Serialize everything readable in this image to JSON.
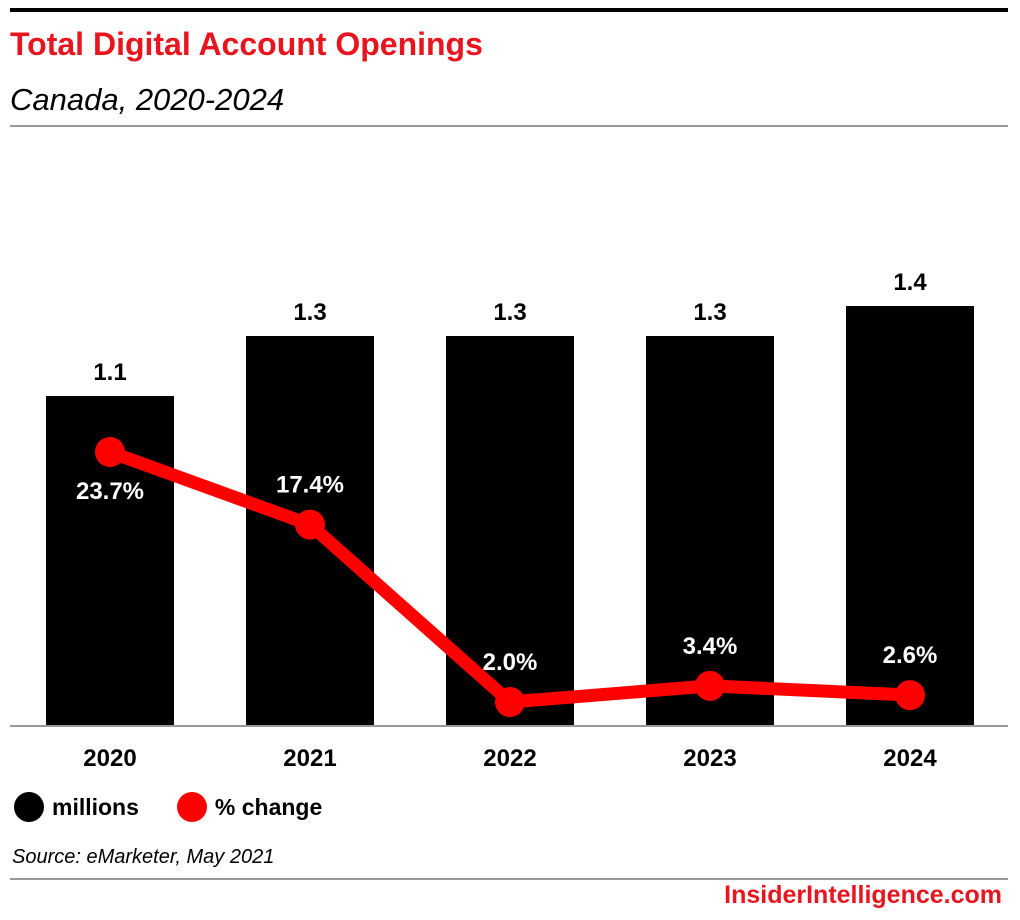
{
  "header": {
    "title": "Total Digital Account Openings",
    "subtitle": "Canada, 2020-2024"
  },
  "chart_data": {
    "type": "bar",
    "categories": [
      "2020",
      "2021",
      "2022",
      "2023",
      "2024"
    ],
    "series": [
      {
        "name": "millions",
        "type": "bar",
        "values": [
          1.1,
          1.3,
          1.3,
          1.3,
          1.4
        ],
        "labels": [
          "1.1",
          "1.3",
          "1.3",
          "1.3",
          "1.4"
        ],
        "color": "#000000"
      },
      {
        "name": "% change",
        "type": "line",
        "values": [
          23.7,
          17.4,
          2.0,
          3.4,
          2.6
        ],
        "labels": [
          "23.7%",
          "17.4%",
          "2.0%",
          "3.4%",
          "2.6%"
        ],
        "color": "#ff0000"
      }
    ],
    "xlabel": "",
    "ylabel": "",
    "grid": false,
    "legend_position": "bottom-left"
  },
  "legend": {
    "items": [
      {
        "label": "millions",
        "color": "#000000"
      },
      {
        "label": "% change",
        "color": "#ff0000"
      }
    ]
  },
  "footer": {
    "source": "Source: eMarketer, May 2021",
    "brand": "InsiderIntelligence.com"
  }
}
